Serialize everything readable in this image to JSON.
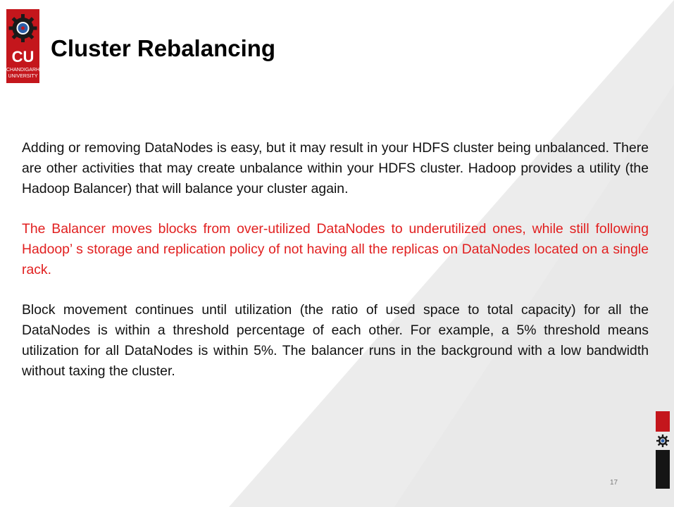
{
  "slide": {
    "title": "Cluster Rebalancing",
    "page_number": "17"
  },
  "logo": {
    "abbr": "CU",
    "name_line1": "CHANDIGARH",
    "name_line2": "UNIVERSITY",
    "color": "#c4161c"
  },
  "paragraphs": [
    "Adding or removing DataNodes is easy, but it may result in your HDFS cluster being unbalanced. There are other activities that may create unbalance within your HDFS cluster. Hadoop provides a utility (the Hadoop Balancer) that will balance your cluster again.",
    "The Balancer moves blocks from over-utilized DataNodes to underutilized ones, while still following Hadoop’ s storage and replication policy of not having all the replicas on DataNodes located on a single rack.",
    "Block movement continues until utilization (the ratio of used space to total capacity) for all the DataNodes is within a threshold percentage of each other. For example, a 5% threshold means utilization for all DataNodes is within 5%. The balancer runs in the background with a low bandwidth without taxing the cluster."
  ],
  "colors": {
    "highlight_text": "#e11f1f",
    "body_text": "#111111",
    "accent_red": "#c4161c",
    "accent_black": "#151515"
  },
  "icons": {
    "logo_emblem": "gear-emblem-icon",
    "side_emblem": "gear-icon"
  }
}
